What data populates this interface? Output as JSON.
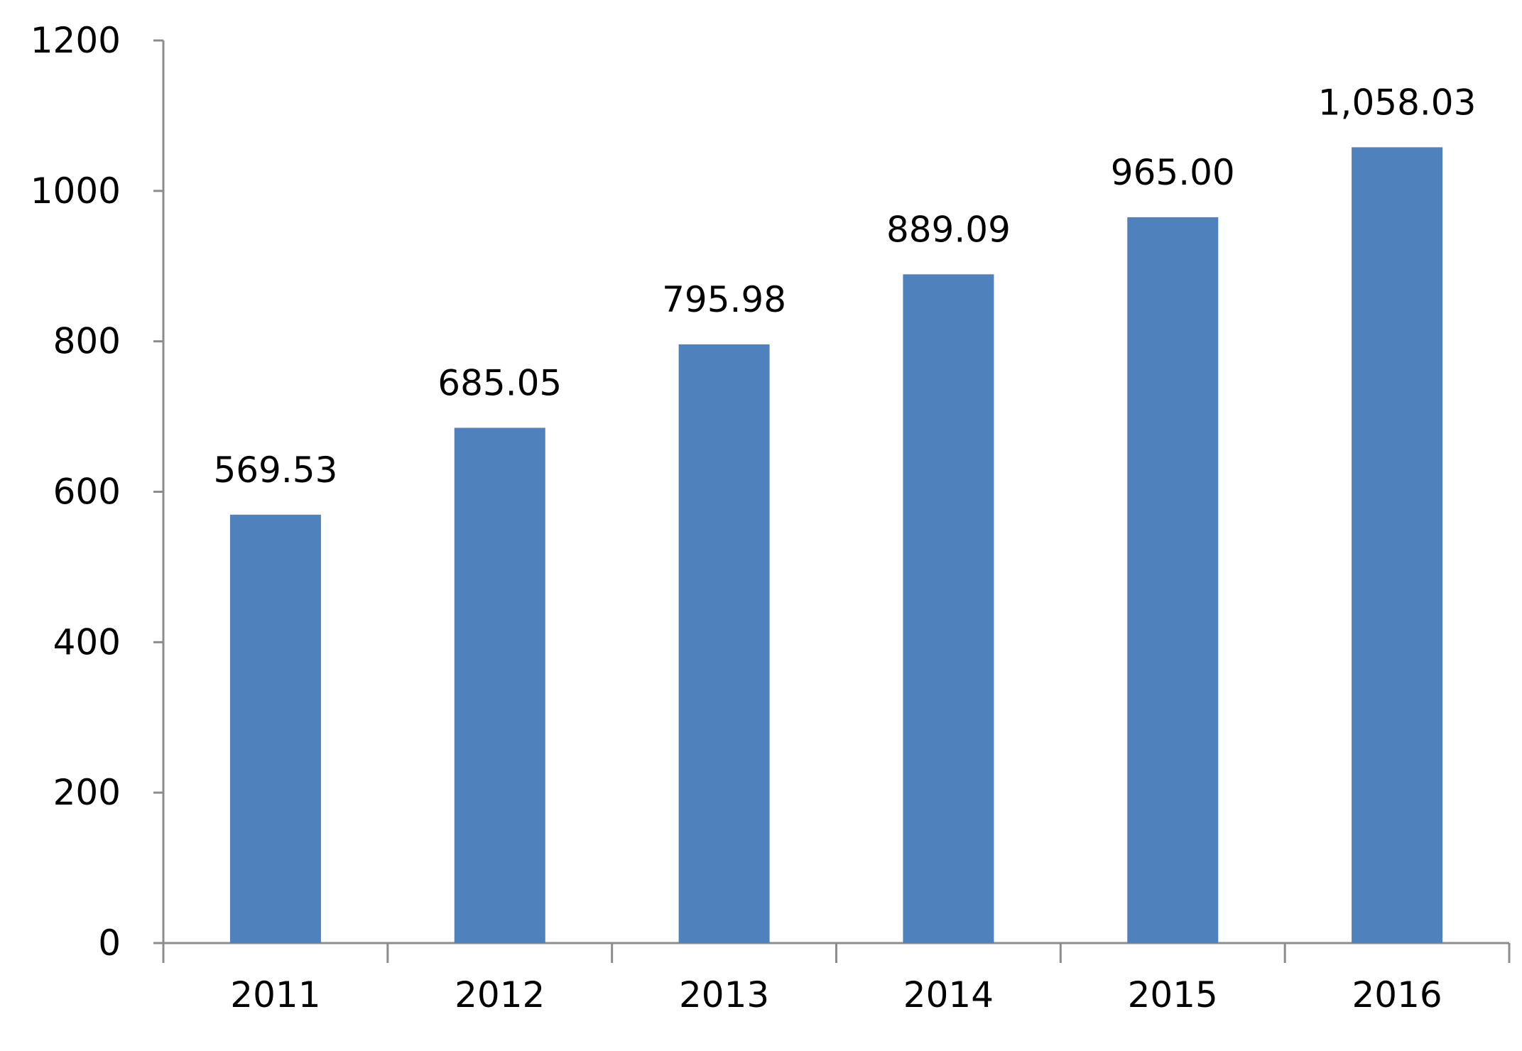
{
  "chart_data": {
    "type": "bar",
    "title": "",
    "xlabel": "",
    "ylabel": "",
    "categories": [
      "2011",
      "2012",
      "2013",
      "2014",
      "2015",
      "2016"
    ],
    "values": [
      569.53,
      685.05,
      795.98,
      889.09,
      965.0,
      1058.03
    ],
    "data_labels": [
      "569.53",
      "685.05",
      "795.98",
      "889.09",
      "965.00",
      "1,058.03"
    ],
    "ylim": [
      0,
      1200
    ],
    "yticks": [
      0,
      200,
      400,
      600,
      800,
      1000,
      1200
    ],
    "ytick_labels": [
      "0",
      "200",
      "400",
      "600",
      "800",
      "1000",
      "1200"
    ],
    "grid": false,
    "legend": "none",
    "bar_color": "#4f81bd",
    "axis_color": "#8c8c8c"
  }
}
